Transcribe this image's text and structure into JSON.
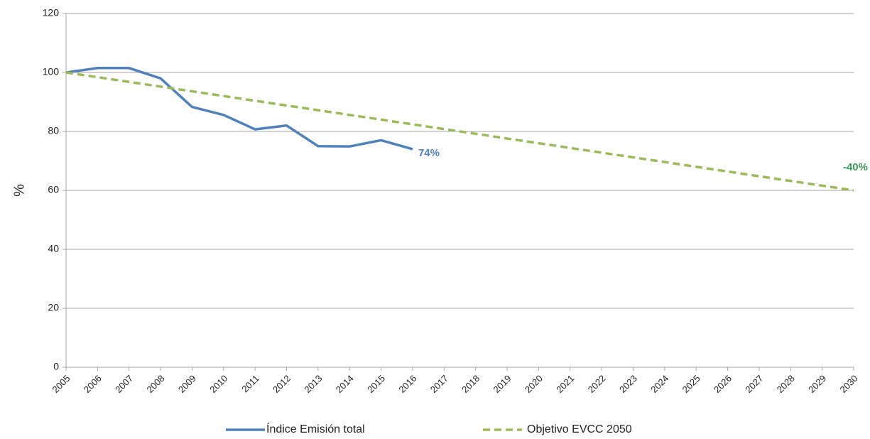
{
  "chart_data": {
    "type": "line",
    "y_label": "%",
    "x": [
      2005,
      2006,
      2007,
      2008,
      2009,
      2010,
      2011,
      2012,
      2013,
      2014,
      2015,
      2016,
      2017,
      2018,
      2019,
      2020,
      2021,
      2022,
      2023,
      2024,
      2025,
      2026,
      2027,
      2028,
      2029,
      2030
    ],
    "xlim": [
      2005,
      2030
    ],
    "xticks": [
      2005,
      2006,
      2007,
      2008,
      2009,
      2010,
      2011,
      2012,
      2013,
      2014,
      2015,
      2016,
      2017,
      2018,
      2019,
      2020,
      2021,
      2022,
      2023,
      2024,
      2025,
      2026,
      2027,
      2028,
      2029,
      2030
    ],
    "ylim": [
      0,
      120
    ],
    "yticks": [
      0,
      20,
      40,
      60,
      80,
      100,
      120
    ],
    "grid": true,
    "legend": "bottom",
    "series": [
      {
        "name": "Índice Emisión total",
        "color": "#4f81bd",
        "dash": false,
        "values": [
          100,
          101.5,
          101.5,
          98,
          88.3,
          85.6,
          80.7,
          82,
          75,
          74.9,
          77,
          74,
          null,
          null,
          null,
          null,
          null,
          null,
          null,
          null,
          null,
          null,
          null,
          null,
          null,
          null
        ]
      },
      {
        "name": "Objetivo EVCC 2050",
        "color": "#9bbb59",
        "dash": true,
        "values": [
          100,
          98.4,
          96.8,
          95.2,
          93.6,
          92,
          90.4,
          88.8,
          87.2,
          85.6,
          84,
          82.4,
          80.8,
          79.2,
          77.6,
          76,
          74.4,
          72.8,
          71.2,
          69.6,
          68,
          66.4,
          64.8,
          63.2,
          61.6,
          60
        ]
      }
    ],
    "annotations": [
      {
        "text": "74%",
        "series": 0,
        "index": 11,
        "color": "#4f81bd"
      },
      {
        "text": "-40%",
        "series": 1,
        "index": 25,
        "color": "#3a9a5a"
      }
    ]
  }
}
